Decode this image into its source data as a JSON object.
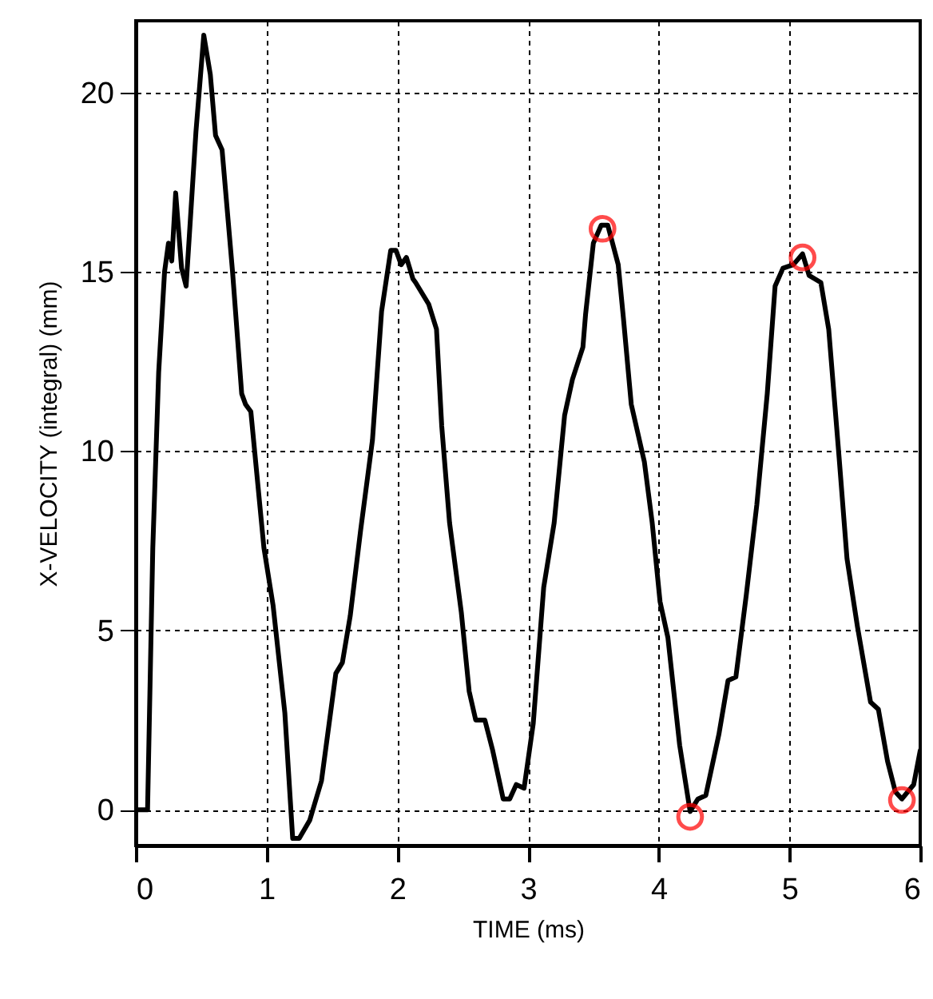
{
  "chart_data": {
    "type": "line",
    "xlabel": "TIME (ms)",
    "ylabel": "X-VELOCITY (integral) (mm)",
    "xlim": [
      0,
      6
    ],
    "ylim": [
      -1,
      22
    ],
    "xticks": [
      0,
      1,
      2,
      3,
      4,
      5,
      6
    ],
    "yticks": [
      0,
      5,
      10,
      15,
      20
    ],
    "grid": true,
    "line_style": "solid",
    "series": [
      {
        "color": "#000000",
        "marker": "none",
        "x": [
          0,
          0.09,
          0.13,
          0.175,
          0.22,
          0.25,
          0.275,
          0.305,
          0.35,
          0.385,
          0.46,
          0.52,
          0.57,
          0.61,
          0.66,
          0.74,
          0.81,
          0.84,
          0.88,
          0.98,
          1.05,
          1.14,
          1.2,
          1.25,
          1.33,
          1.42,
          1.53,
          1.58,
          1.64,
          1.72,
          1.81,
          1.88,
          1.95,
          1.99,
          2.03,
          2.07,
          2.12,
          2.14,
          2.24,
          2.3,
          2.34,
          2.4,
          2.49,
          2.55,
          2.6,
          2.67,
          2.73,
          2.81,
          2.86,
          2.91,
          2.97,
          3.04,
          3.12,
          3.2,
          3.28,
          3.34,
          3.42,
          3.44,
          3.5,
          3.56,
          3.61,
          3.69,
          3.73,
          3.79,
          3.89,
          3.95,
          4.01,
          4.07,
          4.16,
          4.24,
          4.3,
          4.36,
          4.46,
          4.53,
          4.59,
          4.67,
          4.75,
          4.83,
          4.89,
          4.95,
          5.03,
          5.1,
          5.15,
          5.24,
          5.3,
          5.38,
          5.44,
          5.52,
          5.62,
          5.68,
          5.75,
          5.81,
          5.86,
          5.95,
          6.0
        ],
        "values": [
          0,
          0,
          7.3,
          12.2,
          15.0,
          15.8,
          15.3,
          17.2,
          15.1,
          14.6,
          18.9,
          21.6,
          20.5,
          18.8,
          18.4,
          15.0,
          11.6,
          11.3,
          11.1,
          7.3,
          5.7,
          2.7,
          -0.8,
          -0.8,
          -0.3,
          0.8,
          3.8,
          4.1,
          5.4,
          7.8,
          10.3,
          13.9,
          15.6,
          15.6,
          15.2,
          15.4,
          14.8,
          14.7,
          14.1,
          13.4,
          10.7,
          8.0,
          5.5,
          3.3,
          2.5,
          2.5,
          1.65,
          0.3,
          0.3,
          0.7,
          0.6,
          2.4,
          6.2,
          8.0,
          11.0,
          12.0,
          12.9,
          13.8,
          15.8,
          16.3,
          16.3,
          15.2,
          13.7,
          11.3,
          9.7,
          8.0,
          5.8,
          4.8,
          1.8,
          -0.05,
          0.3,
          0.4,
          2.1,
          3.6,
          3.7,
          6.0,
          8.5,
          11.6,
          14.6,
          15.1,
          15.2,
          15.5,
          14.9,
          14.7,
          13.4,
          9.8,
          7.0,
          5.1,
          3.0,
          2.8,
          1.35,
          0.5,
          0.3,
          0.7,
          1.65
        ]
      },
      {
        "type": "scatter",
        "color": "#ff0000",
        "marker": "circle",
        "x": [
          3.57,
          4.24,
          5.1,
          5.86
        ],
        "values": [
          16.2,
          -0.2,
          15.4,
          0.27
        ]
      }
    ]
  }
}
